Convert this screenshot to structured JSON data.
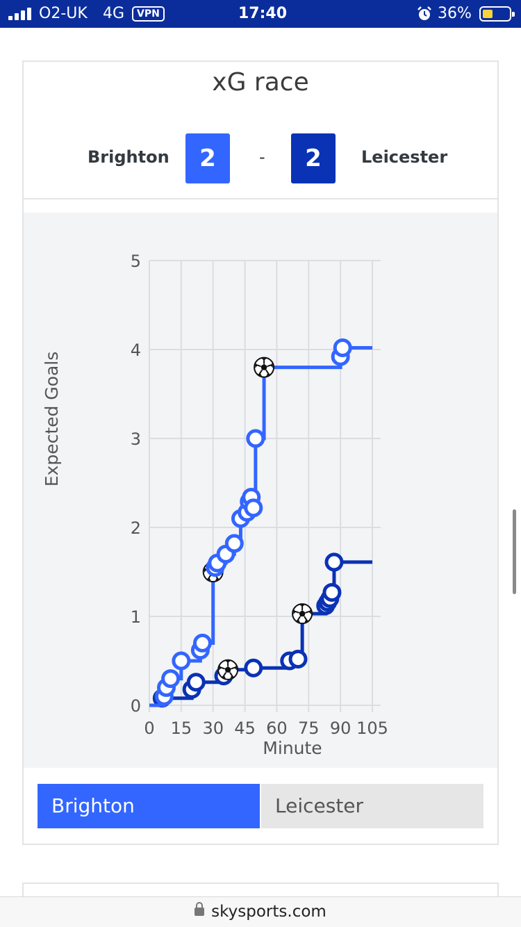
{
  "status_bar": {
    "carrier": "O2-UK",
    "network": "4G",
    "vpn": "VPN",
    "time": "17:40",
    "battery": "36%",
    "battery_level": 0.36,
    "icons": [
      "signal-bars-icon",
      "alarm-clock-icon",
      "battery-icon"
    ]
  },
  "card": {
    "title": "xG race",
    "home_team": "Brighton",
    "home_score": "2",
    "separator": "-",
    "away_score": "2",
    "away_team": "Leicester"
  },
  "colors": {
    "brighton": "#3366ff",
    "leicester": "#0a32b4",
    "status_bar": "#0b2d9c",
    "chart_bg": "#f3f4f6",
    "toggle_inactive": "#e6e6e6"
  },
  "chart_data": {
    "type": "line",
    "step": true,
    "xlabel": "Minute",
    "ylabel": "Expected Goals",
    "xlim": [
      0,
      105
    ],
    "ylim": [
      0,
      5
    ],
    "xticks": [
      0,
      15,
      30,
      45,
      60,
      75,
      90,
      105
    ],
    "yticks": [
      0,
      1,
      2,
      3,
      4,
      5
    ],
    "grid": true,
    "goal_marker": "soccer-ball-icon",
    "series": [
      {
        "name": "Brighton",
        "color": "#3366ff",
        "points": [
          {
            "x": 0,
            "y": 0
          },
          {
            "x": 7,
            "y": 0.1
          },
          {
            "x": 8,
            "y": 0.2
          },
          {
            "x": 10,
            "y": 0.3
          },
          {
            "x": 15,
            "y": 0.5
          },
          {
            "x": 24,
            "y": 0.62
          },
          {
            "x": 25,
            "y": 0.7
          },
          {
            "x": 30,
            "y": 1.5,
            "goal": true
          },
          {
            "x": 31,
            "y": 1.55
          },
          {
            "x": 32,
            "y": 1.6
          },
          {
            "x": 36,
            "y": 1.7
          },
          {
            "x": 40,
            "y": 1.82
          },
          {
            "x": 43,
            "y": 2.1
          },
          {
            "x": 46,
            "y": 2.17
          },
          {
            "x": 47,
            "y": 2.29
          },
          {
            "x": 48,
            "y": 2.34
          },
          {
            "x": 49,
            "y": 2.22
          },
          {
            "x": 50,
            "y": 3.0
          },
          {
            "x": 54,
            "y": 3.8,
            "goal": true
          },
          {
            "x": 90,
            "y": 3.92
          },
          {
            "x": 91,
            "y": 4.02
          },
          {
            "x": 105,
            "y": 4.02,
            "marker": false
          }
        ]
      },
      {
        "name": "Leicester",
        "color": "#0a32b4",
        "points": [
          {
            "x": 0,
            "y": 0
          },
          {
            "x": 6,
            "y": 0.08
          },
          {
            "x": 20,
            "y": 0.18
          },
          {
            "x": 22,
            "y": 0.26
          },
          {
            "x": 35,
            "y": 0.33
          },
          {
            "x": 37,
            "y": 0.4,
            "goal": true
          },
          {
            "x": 49,
            "y": 0.42
          },
          {
            "x": 66,
            "y": 0.5
          },
          {
            "x": 70,
            "y": 0.52
          },
          {
            "x": 72,
            "y": 1.03,
            "goal": true
          },
          {
            "x": 83,
            "y": 1.12
          },
          {
            "x": 84,
            "y": 1.16
          },
          {
            "x": 85,
            "y": 1.2
          },
          {
            "x": 86,
            "y": 1.27
          },
          {
            "x": 87,
            "y": 1.61
          },
          {
            "x": 105,
            "y": 1.61,
            "marker": false
          }
        ]
      }
    ]
  },
  "toggle": {
    "home_label": "Brighton",
    "away_label": "Leicester",
    "selected": "Brighton"
  },
  "browser": {
    "url": "skysports.com",
    "icon": "lock-icon"
  }
}
